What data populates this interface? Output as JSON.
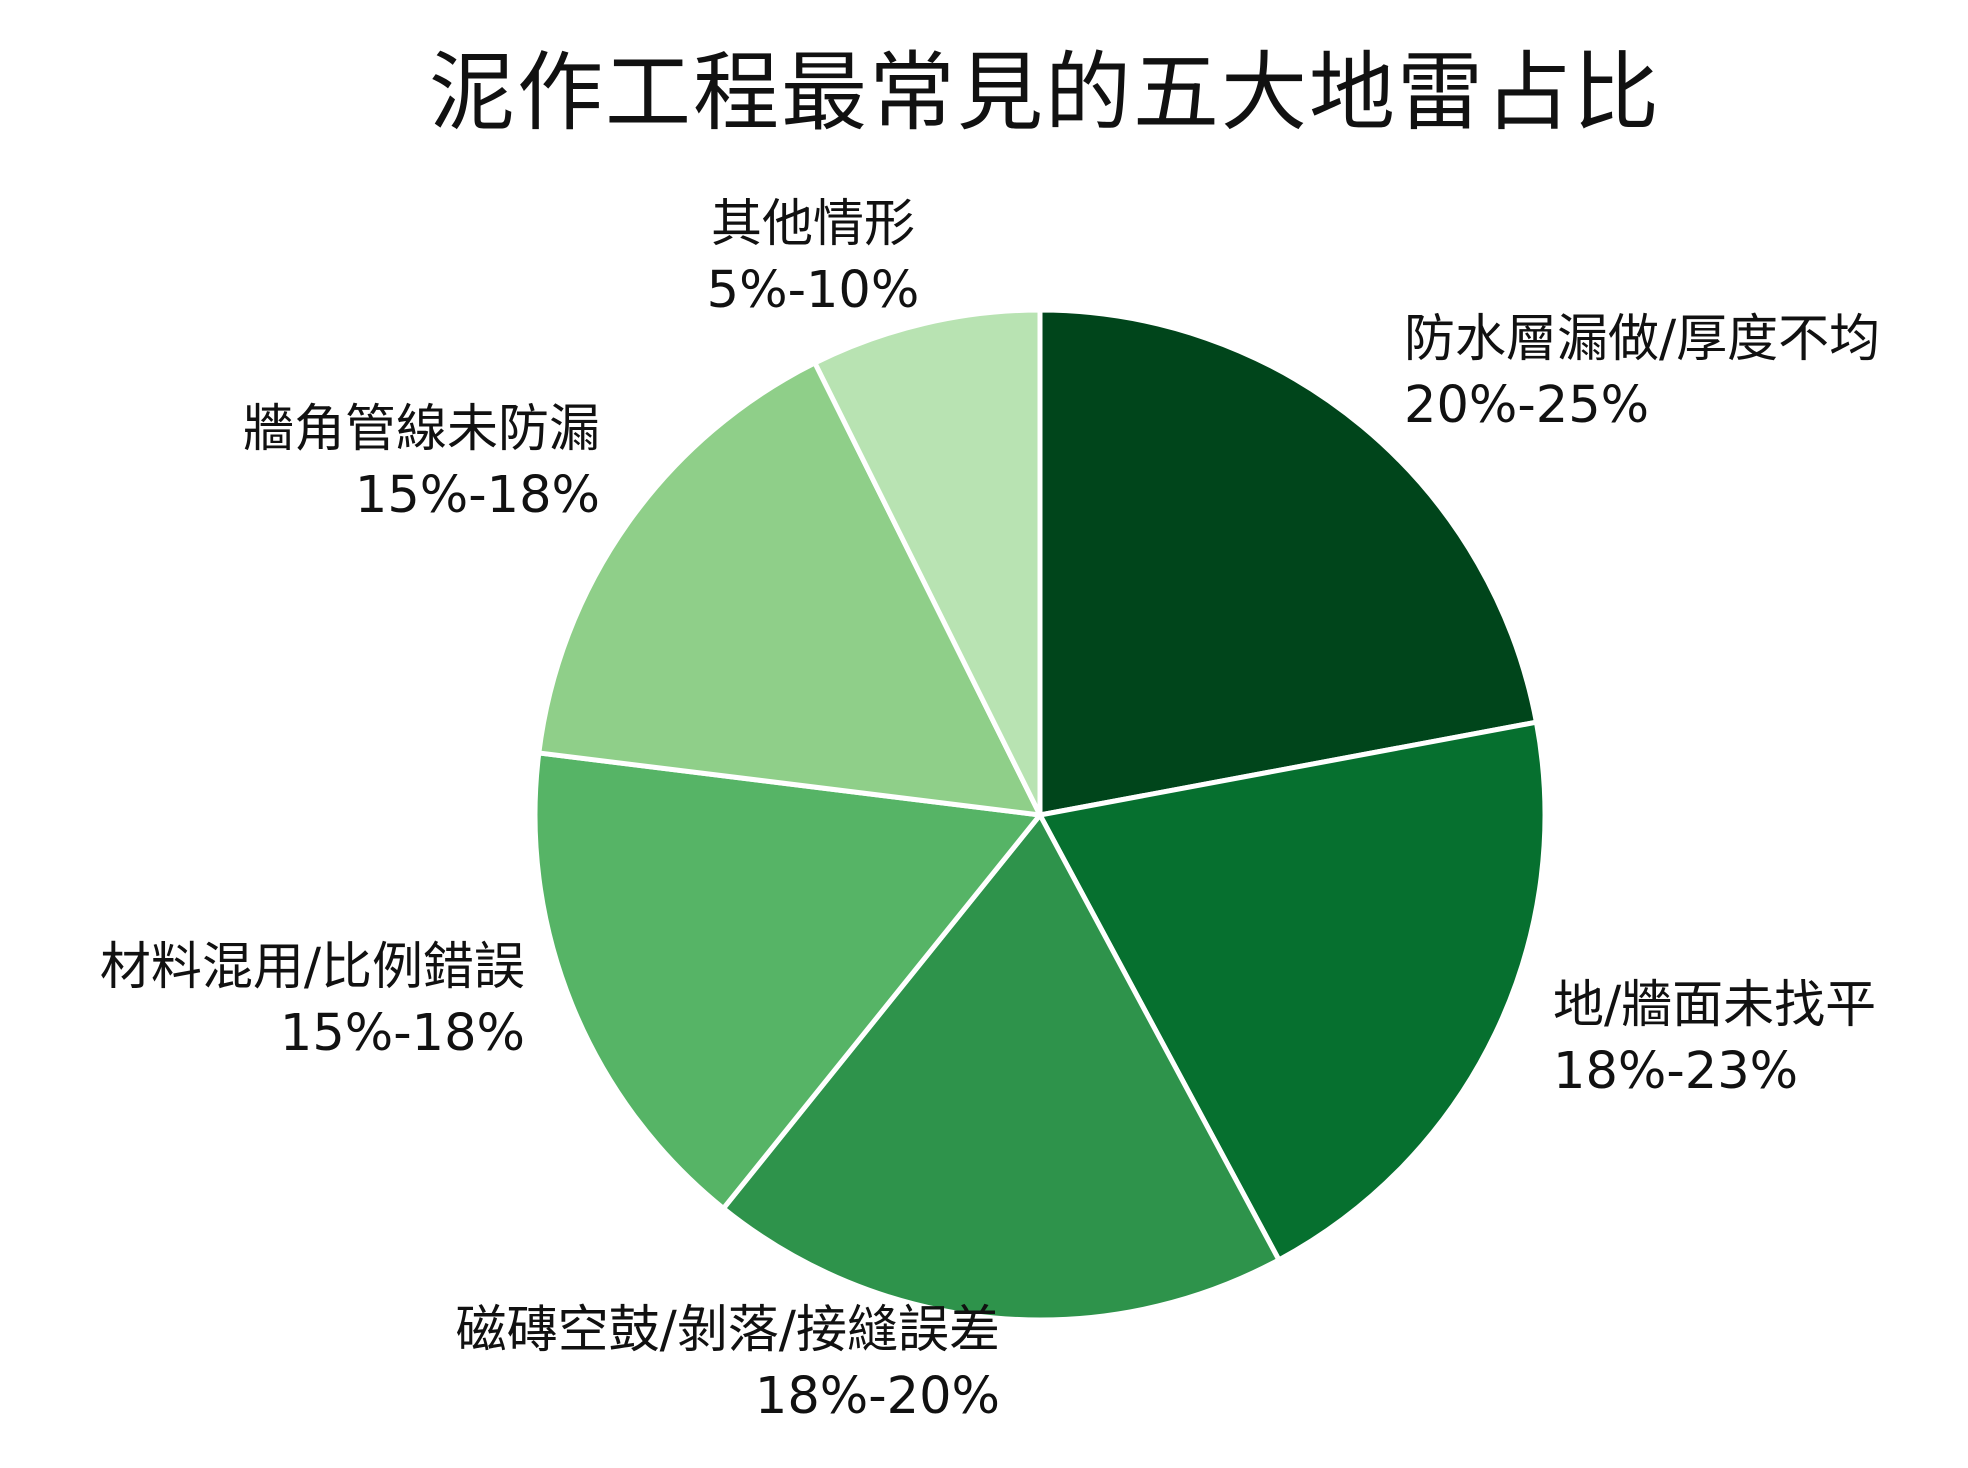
{
  "chart_data": {
    "type": "pie",
    "title": "泥作工程最常見的五大地雷占比",
    "start_angle_deg": 0,
    "direction": "clockwise",
    "slices": [
      {
        "label": "防水層漏做/厚度不均",
        "range": "20%-25%",
        "value": 22.5,
        "color": "#00451b"
      },
      {
        "label": "地/牆面未找平",
        "range": "18%-23%",
        "value": 20.5,
        "color": "#06702f"
      },
      {
        "label": "磁磚空鼓/剝落/接縫誤差",
        "range": "18%-20%",
        "value": 19.0,
        "color": "#2e934b"
      },
      {
        "label": "材料混用/比例錯誤",
        "range": "15%-18%",
        "value": 16.5,
        "color": "#56b466"
      },
      {
        "label": "牆角管線未防漏",
        "range": "15%-18%",
        "value": 16.0,
        "color": "#8fcf89"
      },
      {
        "label": "其他情形",
        "range": "5%-10%",
        "value": 7.5,
        "color": "#b8e3b2"
      }
    ]
  }
}
